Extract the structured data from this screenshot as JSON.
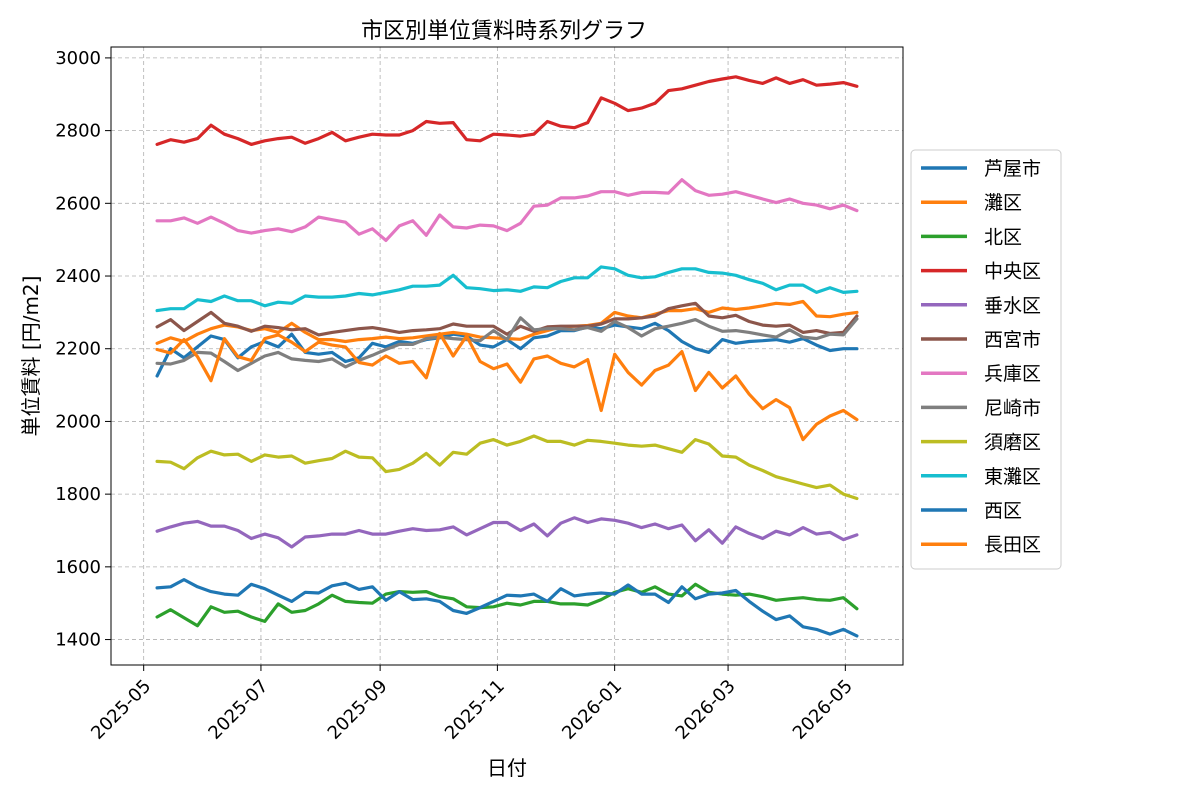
{
  "chart_data": {
    "type": "line",
    "title": "市区別単位賃料時系列グラフ",
    "xlabel": "日付",
    "ylabel": "単位賃料 [円/m2]",
    "x_tick_labels": [
      "2025-05",
      "2025-07",
      "2025-09",
      "2025-11",
      "2026-01",
      "2026-03",
      "2026-05"
    ],
    "y_ticks": [
      1400,
      1600,
      1800,
      2000,
      2200,
      2400,
      2600,
      2800,
      3000
    ],
    "xlim": [
      "2025-04-14",
      "2026-05-31"
    ],
    "ylim": [
      1330,
      3030
    ],
    "grid": true,
    "legend_position": "right",
    "dates": [
      "2025-05-08",
      "2025-05-15",
      "2025-05-22",
      "2025-05-29",
      "2025-06-05",
      "2025-06-12",
      "2025-06-19",
      "2025-06-26",
      "2025-07-03",
      "2025-07-10",
      "2025-07-17",
      "2025-07-24",
      "2025-07-31",
      "2025-08-07",
      "2025-08-14",
      "2025-08-21",
      "2025-08-28",
      "2025-09-04",
      "2025-09-11",
      "2025-09-18",
      "2025-09-25",
      "2025-10-02",
      "2025-10-09",
      "2025-10-16",
      "2025-10-23",
      "2025-10-30",
      "2025-11-06",
      "2025-11-13",
      "2025-11-20",
      "2025-11-27",
      "2025-12-04",
      "2025-12-11",
      "2025-12-18",
      "2025-12-25",
      "2026-01-01",
      "2026-01-08",
      "2026-01-15",
      "2026-01-22",
      "2026-01-29",
      "2026-02-05",
      "2026-02-12",
      "2026-02-19",
      "2026-02-26",
      "2026-03-05",
      "2026-03-12",
      "2026-03-19",
      "2026-03-26",
      "2026-04-02",
      "2026-04-09",
      "2026-04-16",
      "2026-04-23",
      "2026-04-30",
      "2026-05-07"
    ],
    "series": [
      {
        "name": "芦屋市",
        "color": "#1f77b4",
        "values": [
          2125,
          2200,
          2175,
          2205,
          2235,
          2225,
          2175,
          2205,
          2220,
          2205,
          2240,
          2190,
          2185,
          2190,
          2165,
          2175,
          2215,
          2205,
          2220,
          2215,
          2225,
          2230,
          2240,
          2235,
          2210,
          2205,
          2225,
          2200,
          2230,
          2235,
          2250,
          2250,
          2260,
          2255,
          2265,
          2260,
          2255,
          2270,
          2250,
          2220,
          2200,
          2190,
          2225,
          2215,
          2220,
          2222,
          2225,
          2218,
          2228,
          2210,
          2195,
          2200,
          2200
        ]
      },
      {
        "name": "灘区",
        "color": "#ff7f0e",
        "values": [
          2215,
          2230,
          2220,
          2240,
          2255,
          2265,
          2260,
          2250,
          2255,
          2245,
          2270,
          2245,
          2225,
          2225,
          2220,
          2225,
          2228,
          2232,
          2228,
          2230,
          2235,
          2240,
          2245,
          2240,
          2232,
          2230,
          2228,
          2226,
          2240,
          2250,
          2260,
          2262,
          2264,
          2270,
          2300,
          2290,
          2285,
          2295,
          2305,
          2305,
          2310,
          2300,
          2312,
          2308,
          2312,
          2318,
          2325,
          2322,
          2330,
          2290,
          2288,
          2295,
          2300
        ]
      },
      {
        "name": "北区",
        "color": "#2ca02c",
        "values": [
          1462,
          1482,
          1460,
          1438,
          1490,
          1475,
          1478,
          1462,
          1450,
          1498,
          1475,
          1480,
          1498,
          1522,
          1505,
          1502,
          1500,
          1525,
          1532,
          1530,
          1532,
          1518,
          1512,
          1490,
          1488,
          1490,
          1500,
          1495,
          1505,
          1505,
          1498,
          1498,
          1495,
          1510,
          1530,
          1540,
          1530,
          1545,
          1525,
          1520,
          1552,
          1530,
          1525,
          1522,
          1525,
          1518,
          1508,
          1512,
          1515,
          1510,
          1508,
          1515,
          1485
        ]
      },
      {
        "name": "中央区",
        "color": "#d62728",
        "values": [
          2762,
          2775,
          2768,
          2778,
          2815,
          2790,
          2778,
          2762,
          2772,
          2778,
          2782,
          2765,
          2778,
          2795,
          2772,
          2782,
          2790,
          2788,
          2788,
          2800,
          2825,
          2820,
          2822,
          2775,
          2772,
          2790,
          2788,
          2785,
          2790,
          2825,
          2812,
          2808,
          2822,
          2890,
          2875,
          2855,
          2862,
          2875,
          2910,
          2915,
          2925,
          2935,
          2942,
          2948,
          2938,
          2930,
          2945,
          2930,
          2940,
          2925,
          2928,
          2932,
          2922
        ]
      },
      {
        "name": "垂水区",
        "color": "#9467bd",
        "values": [
          1698,
          1710,
          1720,
          1725,
          1712,
          1712,
          1700,
          1678,
          1690,
          1680,
          1655,
          1682,
          1685,
          1690,
          1690,
          1700,
          1690,
          1690,
          1698,
          1705,
          1700,
          1702,
          1710,
          1688,
          1705,
          1722,
          1722,
          1700,
          1718,
          1685,
          1720,
          1735,
          1722,
          1732,
          1728,
          1720,
          1708,
          1718,
          1705,
          1715,
          1672,
          1702,
          1665,
          1710,
          1692,
          1678,
          1698,
          1688,
          1708,
          1690,
          1695,
          1675,
          1688
        ]
      },
      {
        "name": "西宮市",
        "color": "#8c564b",
        "values": [
          2260,
          2280,
          2250,
          2275,
          2300,
          2270,
          2262,
          2248,
          2262,
          2258,
          2252,
          2255,
          2238,
          2245,
          2250,
          2255,
          2258,
          2252,
          2245,
          2250,
          2252,
          2255,
          2268,
          2262,
          2262,
          2262,
          2240,
          2262,
          2248,
          2260,
          2262,
          2262,
          2262,
          2268,
          2282,
          2282,
          2285,
          2290,
          2310,
          2318,
          2325,
          2290,
          2285,
          2292,
          2275,
          2265,
          2262,
          2265,
          2245,
          2250,
          2242,
          2245,
          2290
        ]
      },
      {
        "name": "兵庫区",
        "color": "#e377c2",
        "values": [
          2552,
          2552,
          2560,
          2545,
          2562,
          2545,
          2525,
          2518,
          2525,
          2530,
          2522,
          2535,
          2562,
          2555,
          2548,
          2515,
          2530,
          2498,
          2538,
          2552,
          2512,
          2568,
          2535,
          2532,
          2540,
          2538,
          2525,
          2545,
          2592,
          2595,
          2615,
          2615,
          2620,
          2632,
          2632,
          2622,
          2630,
          2630,
          2628,
          2665,
          2635,
          2622,
          2625,
          2632,
          2622,
          2612,
          2602,
          2612,
          2600,
          2595,
          2585,
          2595,
          2580
        ]
      },
      {
        "name": "尼崎市",
        "color": "#7f7f7f",
        "values": [
          2160,
          2158,
          2168,
          2190,
          2188,
          2165,
          2140,
          2160,
          2180,
          2190,
          2172,
          2168,
          2165,
          2172,
          2150,
          2168,
          2182,
          2198,
          2212,
          2212,
          2228,
          2232,
          2228,
          2225,
          2222,
          2250,
          2225,
          2285,
          2252,
          2255,
          2255,
          2252,
          2258,
          2248,
          2275,
          2258,
          2235,
          2255,
          2262,
          2270,
          2280,
          2262,
          2248,
          2250,
          2245,
          2238,
          2232,
          2252,
          2232,
          2228,
          2240,
          2238,
          2282
        ]
      },
      {
        "name": "須磨区",
        "color": "#bcbd22",
        "values": [
          1890,
          1888,
          1870,
          1900,
          1918,
          1908,
          1910,
          1890,
          1908,
          1902,
          1905,
          1885,
          1892,
          1898,
          1918,
          1902,
          1900,
          1862,
          1868,
          1885,
          1912,
          1880,
          1915,
          1910,
          1940,
          1950,
          1935,
          1945,
          1960,
          1945,
          1945,
          1935,
          1948,
          1945,
          1940,
          1935,
          1932,
          1935,
          1925,
          1915,
          1950,
          1938,
          1905,
          1902,
          1880,
          1865,
          1848,
          1838,
          1828,
          1818,
          1825,
          1800,
          1788
        ]
      },
      {
        "name": "東灘区",
        "color": "#17becf",
        "values": [
          2305,
          2310,
          2310,
          2335,
          2330,
          2345,
          2332,
          2332,
          2318,
          2328,
          2325,
          2345,
          2342,
          2342,
          2345,
          2352,
          2348,
          2355,
          2362,
          2372,
          2372,
          2375,
          2402,
          2368,
          2365,
          2360,
          2362,
          2358,
          2370,
          2368,
          2385,
          2395,
          2395,
          2425,
          2420,
          2402,
          2395,
          2398,
          2410,
          2420,
          2420,
          2410,
          2408,
          2402,
          2390,
          2380,
          2362,
          2375,
          2375,
          2355,
          2368,
          2355,
          2358
        ]
      },
      {
        "name": "西区",
        "color": "#1f77b4",
        "values": [
          1542,
          1545,
          1565,
          1545,
          1532,
          1525,
          1522,
          1552,
          1540,
          1522,
          1505,
          1530,
          1528,
          1548,
          1555,
          1538,
          1545,
          1508,
          1532,
          1510,
          1512,
          1505,
          1480,
          1472,
          1488,
          1505,
          1522,
          1520,
          1525,
          1505,
          1540,
          1520,
          1525,
          1528,
          1525,
          1550,
          1525,
          1525,
          1502,
          1545,
          1512,
          1525,
          1528,
          1535,
          1505,
          1478,
          1455,
          1465,
          1435,
          1428,
          1415,
          1428,
          1410
        ]
      },
      {
        "name": "長田区",
        "color": "#ff7f0e",
        "values": [
          2198,
          2188,
          2225,
          2178,
          2112,
          2228,
          2178,
          2168,
          2228,
          2238,
          2218,
          2192,
          2218,
          2210,
          2205,
          2162,
          2155,
          2180,
          2160,
          2165,
          2120,
          2242,
          2180,
          2235,
          2165,
          2145,
          2158,
          2108,
          2172,
          2180,
          2160,
          2150,
          2170,
          2030,
          2185,
          2135,
          2100,
          2140,
          2155,
          2192,
          2085,
          2135,
          2092,
          2125,
          2075,
          2035,
          2060,
          2038,
          1950,
          1992,
          2015,
          2030,
          2005
        ]
      }
    ]
  }
}
